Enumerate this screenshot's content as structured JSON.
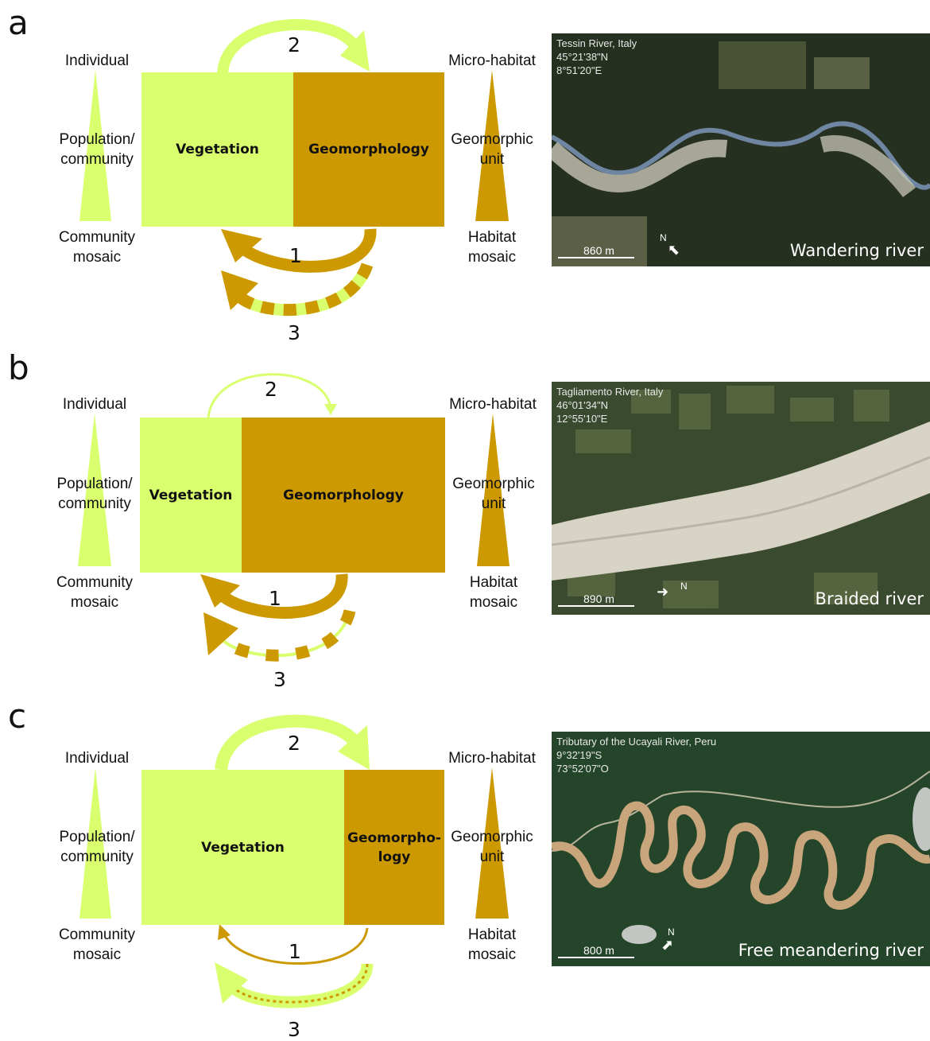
{
  "colors": {
    "vegetation": "#d9ff6f",
    "geomorphology": "#cc9900"
  },
  "left_scale": {
    "top": "Individual",
    "middle": "Population/\ncommunity",
    "bottom": "Community\nmosaic"
  },
  "right_scale": {
    "top": "Micro-habitat",
    "middle": "Geomorphic\nunit",
    "bottom": "Habitat\nmosaic"
  },
  "panels": [
    {
      "letter": "a",
      "vegetation_label": "Vegetation",
      "geomorphology_label": "Geomorphology",
      "arrow_labels": [
        "1",
        "2",
        "3"
      ],
      "vegetation_share": 0.5,
      "map": {
        "location": "Tessin River, Italy\n45°21'38\"N\n8°51'20\"E",
        "scale": "860 m",
        "north": "N",
        "type": "Wandering river"
      }
    },
    {
      "letter": "b",
      "vegetation_label": "Vegetation",
      "geomorphology_label": "Geomorphology",
      "arrow_labels": [
        "1",
        "2",
        "3"
      ],
      "vegetation_share": 0.33,
      "map": {
        "location": "Tagliamento River, Italy\n46°01'34\"N\n12°55'10\"E",
        "scale": "890 m",
        "north": "N",
        "type": "Braided river"
      }
    },
    {
      "letter": "c",
      "vegetation_label": "Vegetation",
      "geomorphology_label": "Geomorpho-\nlogy",
      "arrow_labels": [
        "1",
        "2",
        "3"
      ],
      "vegetation_share": 0.67,
      "map": {
        "location": "Tributary of the Ucayali River, Peru\n9°32'19\"S\n73°52'07\"O",
        "scale": "800 m",
        "north": "N",
        "type": "Free meandering  river"
      }
    }
  ]
}
